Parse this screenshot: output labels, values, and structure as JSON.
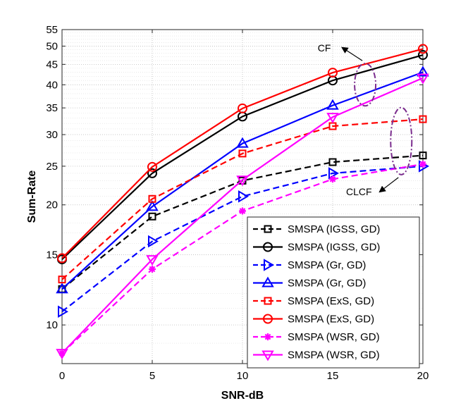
{
  "chart_data": {
    "type": "line",
    "title": "",
    "xlabel": "SNR-dB",
    "ylabel": "Sum-Rate",
    "yscale": "log",
    "x": [
      0,
      5,
      10,
      15,
      20
    ],
    "xlim": [
      0,
      20
    ],
    "ylim": [
      8,
      55
    ],
    "xticks": [
      "0",
      "5",
      "10",
      "15",
      "20"
    ],
    "yticks": [
      10,
      15,
      20,
      25,
      30,
      35,
      40,
      45,
      50,
      55
    ],
    "ytick_labels": [
      "10",
      "15",
      "20",
      "25",
      "30",
      "35",
      "40",
      "45",
      "50",
      "55"
    ],
    "grid": true,
    "legend_position": "bottom-right",
    "series": [
      {
        "name": "SMSPA (IGSS, GD)",
        "color": "#000000",
        "dash": "dashed",
        "marker": "square",
        "values": [
          12.3,
          18.7,
          23.0,
          25.6,
          26.6
        ]
      },
      {
        "name": "SMSPA (IGSS, GD)",
        "color": "#000000",
        "dash": "solid",
        "marker": "circle",
        "values": [
          14.6,
          24.0,
          33.3,
          41.0,
          47.5
        ]
      },
      {
        "name": "SMSPA (Gr, GD)",
        "color": "#0000ff",
        "dash": "dashed",
        "marker": "triangle-right",
        "values": [
          10.8,
          16.2,
          21.0,
          24.0,
          25.0
        ]
      },
      {
        "name": "SMSPA (Gr, GD)",
        "color": "#0000ff",
        "dash": "solid",
        "marker": "triangle-up",
        "values": [
          12.3,
          19.8,
          28.5,
          35.5,
          43.0
        ]
      },
      {
        "name": "SMSPA (ExS, GD)",
        "color": "#ff0000",
        "dash": "dashed",
        "marker": "square",
        "values": [
          13.0,
          20.7,
          26.9,
          31.5,
          32.8
        ]
      },
      {
        "name": "SMSPA (ExS, GD)",
        "color": "#ff0000",
        "dash": "solid",
        "marker": "circle",
        "values": [
          14.7,
          24.9,
          34.9,
          42.9,
          49.2
        ]
      },
      {
        "name": "SMSPA (WSR, GD)",
        "color": "#ff00ff",
        "dash": "dashed",
        "marker": "asterisk",
        "values": [
          8.5,
          13.8,
          19.3,
          23.2,
          25.3
        ]
      },
      {
        "name": "SMSPA (WSR, GD)",
        "color": "#ff00ff",
        "dash": "solid",
        "marker": "triangle-down",
        "values": [
          8.5,
          14.6,
          23.1,
          33.2,
          41.6
        ]
      }
    ],
    "annotations": [
      {
        "text": "CF",
        "series_group": "solid",
        "at_x": 16.8
      },
      {
        "text": "CLCF",
        "series_group": "dashed",
        "at_x": 18.8
      }
    ]
  }
}
